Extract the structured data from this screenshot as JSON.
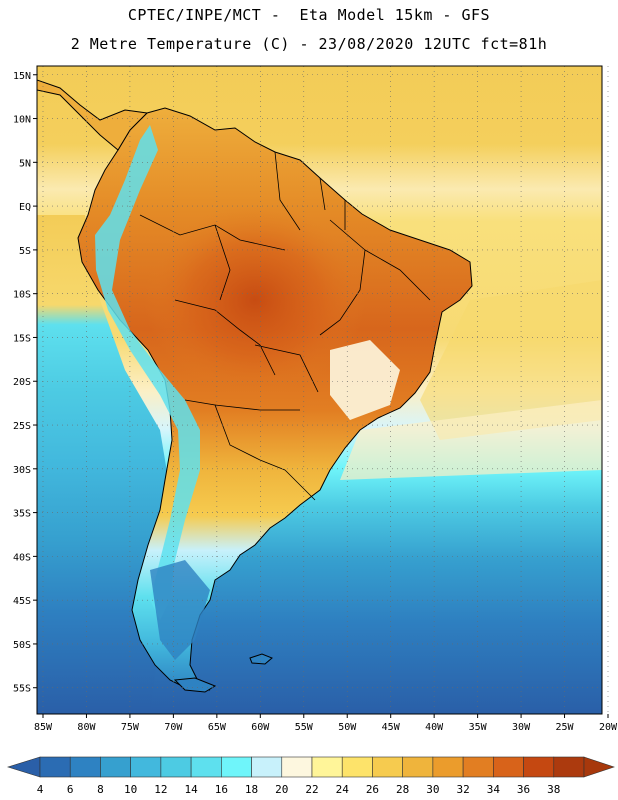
{
  "header": {
    "title_line1": "CPTEC/INPE/MCT -  Eta Model 15km - GFS",
    "title_line2": "2 Metre Temperature (C) - 23/08/2020 12UTC fct=81h"
  },
  "map": {
    "lat_labels": [
      "15N",
      "10N",
      "5N",
      "EQ",
      "5S",
      "10S",
      "15S",
      "20S",
      "25S",
      "30S",
      "35S",
      "40S",
      "45S",
      "50S",
      "55S"
    ],
    "lat_values": [
      15,
      10,
      5,
      0,
      -5,
      -10,
      -15,
      -20,
      -25,
      -30,
      -35,
      -40,
      -45,
      -50,
      -55
    ],
    "lon_labels": [
      "85W",
      "80W",
      "75W",
      "70W",
      "65W",
      "60W",
      "55W",
      "50W",
      "45W",
      "40W",
      "35W",
      "30W",
      "25W",
      "20W"
    ],
    "lon_values": [
      -85,
      -80,
      -75,
      -70,
      -65,
      -60,
      -55,
      -50,
      -45,
      -40,
      -35,
      -30,
      -25,
      -20
    ],
    "extent": {
      "lon_min": -85,
      "lon_max": -20,
      "lat_min": -58,
      "lat_max": 16
    }
  },
  "colorbar": {
    "labels": [
      "4",
      "6",
      "8",
      "10",
      "12",
      "14",
      "16",
      "18",
      "20",
      "22",
      "24",
      "26",
      "28",
      "30",
      "32",
      "34",
      "36",
      "38"
    ],
    "colors": [
      "#2b6cb3",
      "#2e82c2",
      "#36a0cf",
      "#42b8dd",
      "#4dcbe3",
      "#5ee0ee",
      "#6ff5fa",
      "#c8f1fb",
      "#fdf7df",
      "#fff599",
      "#fde36a",
      "#f6cb4f",
      "#efb43c",
      "#eb9c2c",
      "#e27e22",
      "#d8631a",
      "#c54811",
      "#ac3a0e"
    ],
    "below_color": "#2a5fa8",
    "above_color": "#a7380c"
  },
  "colors": {
    "ocean_north": "#f3cc57",
    "ocean_equator": "#f9e07c",
    "ocean_mid": "#4bc8e0",
    "ocean_south": "#2e7fc0",
    "ocean_far_south": "#2a5fa8",
    "land_hot": "#d7661c",
    "land_warm": "#eb9c2c",
    "coast_line": "#000000"
  }
}
